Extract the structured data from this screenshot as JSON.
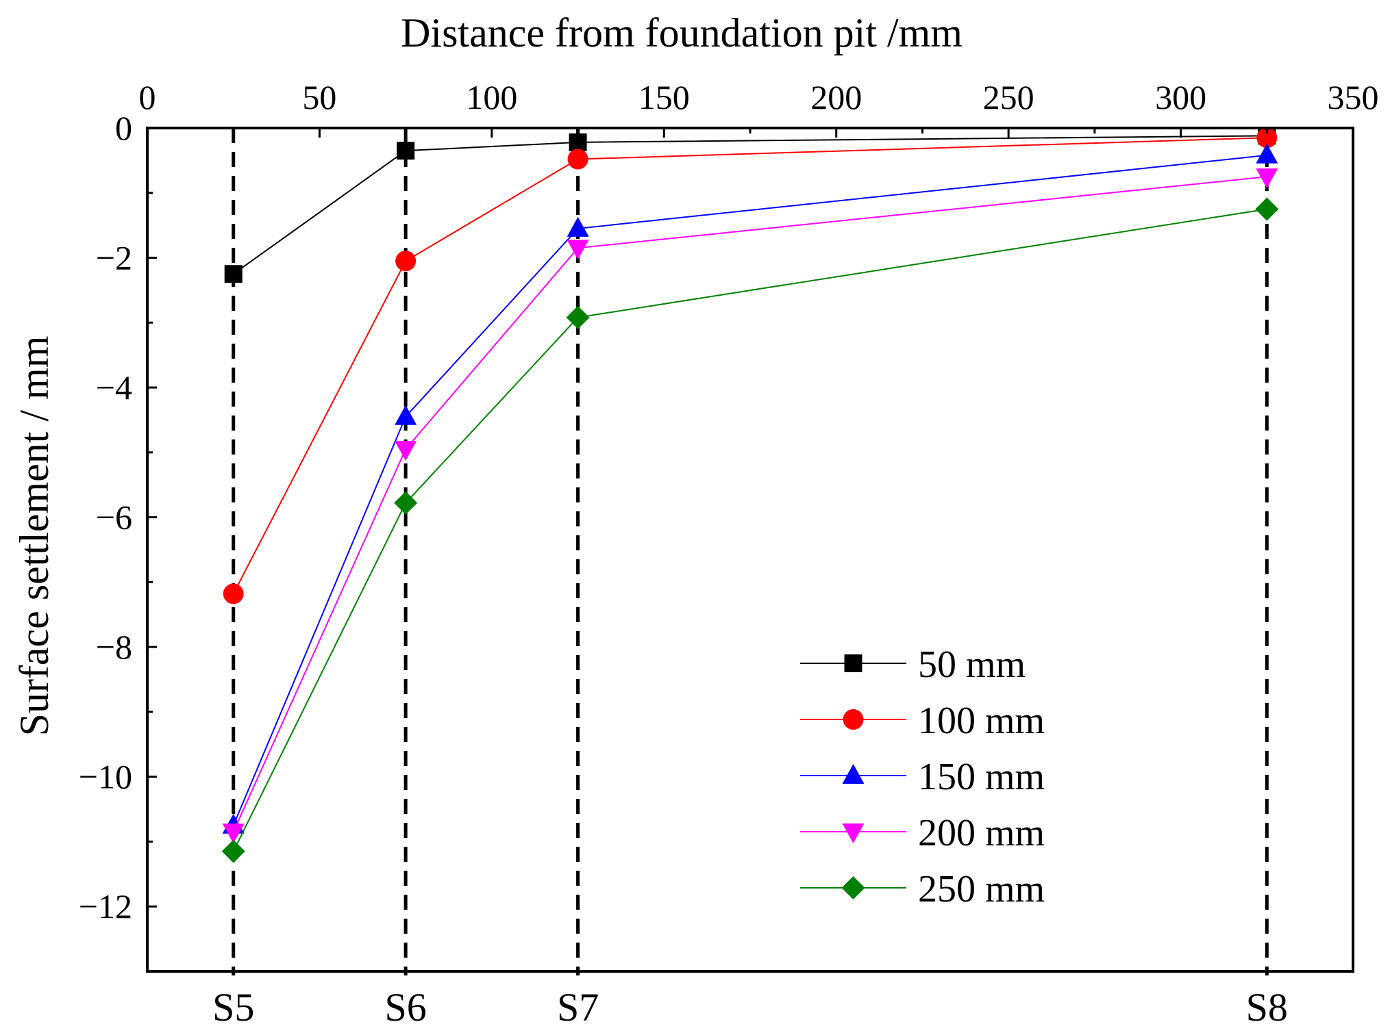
{
  "chart_data": {
    "type": "line",
    "title": "",
    "xlabel": "Distance from foundation pit /mm",
    "ylabel": "Surface settlement / mm",
    "xlim": [
      0,
      350
    ],
    "ylim": [
      -13,
      0
    ],
    "x_ticks": [
      0,
      50,
      100,
      150,
      200,
      250,
      300,
      350
    ],
    "y_ticks": [
      0,
      -2,
      -4,
      -6,
      -8,
      -10,
      -12
    ],
    "x_tick_labels": [
      "0",
      "50",
      "100",
      "150",
      "200",
      "250",
      "300",
      "350"
    ],
    "y_tick_labels": [
      "0",
      "−2",
      "−4",
      "−6",
      "−8",
      "−10",
      "−12"
    ],
    "grid": false,
    "legend_position": "bottom-right",
    "x_axis_position": "top",
    "x": [
      25,
      75,
      125,
      325
    ],
    "stations": [
      {
        "label": "S5",
        "x": 25
      },
      {
        "label": "S6",
        "x": 75
      },
      {
        "label": "S7",
        "x": 125
      },
      {
        "label": "S8",
        "x": 325
      }
    ],
    "series": [
      {
        "name": "50 mm",
        "color": "#000000",
        "marker": "square",
        "values": [
          -2.25,
          -0.35,
          -0.22,
          -0.12
        ]
      },
      {
        "name": "100 mm",
        "color": "#ff0000",
        "marker": "circle",
        "values": [
          -7.18,
          -2.05,
          -0.48,
          -0.15
        ]
      },
      {
        "name": "150 mm",
        "color": "#0000ff",
        "marker": "triangle-up",
        "values": [
          -10.75,
          -4.45,
          -1.55,
          -0.42
        ]
      },
      {
        "name": "200 mm",
        "color": "#ff00ff",
        "marker": "triangle-down",
        "values": [
          -10.85,
          -4.95,
          -1.85,
          -0.75
        ]
      },
      {
        "name": "250 mm",
        "color": "#008000",
        "marker": "diamond",
        "values": [
          -11.15,
          -5.78,
          -2.92,
          -1.25
        ]
      }
    ]
  }
}
